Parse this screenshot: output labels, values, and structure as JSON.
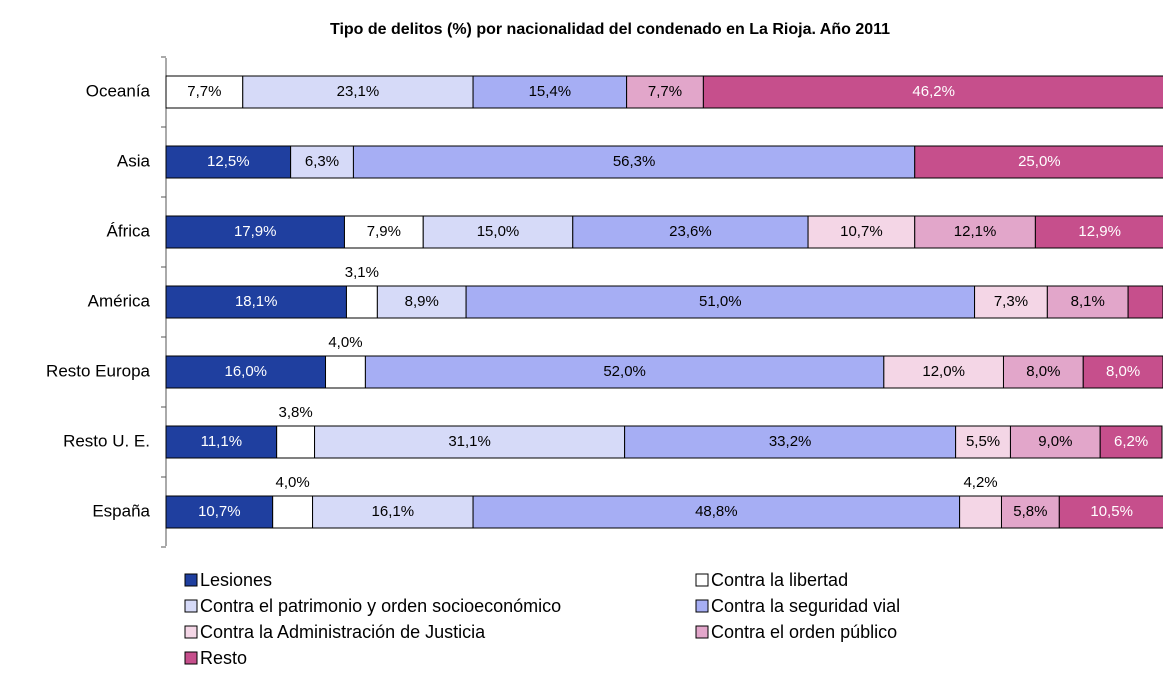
{
  "chart_data": {
    "type": "stacked_bar_horizontal",
    "title": "Tipo de delitos (%) por nacionalidad del condenado en La Rioja. Año 2011",
    "categories": [
      "Oceanía",
      "Asia",
      "África",
      "América",
      "Resto Europa",
      "Resto U. E.",
      "España"
    ],
    "xlim": [
      0,
      100
    ],
    "series": [
      {
        "name": "Lesiones",
        "color": "#1f3f9f",
        "values": [
          0,
          12.5,
          17.9,
          18.1,
          16.0,
          11.1,
          10.7
        ],
        "value_labels": [
          null,
          "12,5%",
          "17,9%",
          "18,1%",
          "16,0%",
          "11,1%",
          "10,7%"
        ]
      },
      {
        "name": "Contra la libertad",
        "color": "#ffffff",
        "values": [
          7.7,
          0,
          7.9,
          3.1,
          4.0,
          3.8,
          4.0
        ],
        "value_labels": [
          "7,7%",
          null,
          "7,9%",
          "3,1%",
          "4,0%",
          "3,8%",
          "4,0%"
        ]
      },
      {
        "name": "Contra el patrimonio y orden socioeconómico",
        "color": "#d6daf8",
        "values": [
          23.1,
          6.3,
          15.0,
          8.9,
          0,
          31.1,
          16.1
        ],
        "value_labels": [
          "23,1%",
          "6,3%",
          "15,0%",
          "8,9%",
          null,
          "31,1%",
          "16,1%"
        ]
      },
      {
        "name": "Contra la seguridad vial",
        "color": "#a6aef4",
        "values": [
          15.4,
          56.3,
          23.6,
          51.0,
          52.0,
          33.2,
          48.8
        ],
        "value_labels": [
          "15,4%",
          "56,3%",
          "23,6%",
          "51,0%",
          "52,0%",
          "33,2%",
          "48,8%"
        ]
      },
      {
        "name": "Contra la Administración de Justicia",
        "color": "#f4d6e6",
        "values": [
          0,
          0,
          10.7,
          7.3,
          12.0,
          5.5,
          4.2
        ],
        "value_labels": [
          null,
          null,
          "10,7%",
          "7,3%",
          "12,0%",
          "5,5%",
          "4,2%"
        ]
      },
      {
        "name": "Contra el orden público",
        "color": "#e2a6ca",
        "values": [
          7.7,
          0,
          12.1,
          8.1,
          8.0,
          9.0,
          5.8
        ],
        "value_labels": [
          "7,7%",
          null,
          "12,1%",
          "8,1%",
          "8,0%",
          "9,0%",
          "5,8%"
        ]
      },
      {
        "name": "Resto",
        "color": "#c64f8c",
        "values": [
          46.2,
          25.0,
          12.9,
          3.5,
          8.0,
          6.2,
          10.5
        ],
        "value_labels": [
          "46,2%",
          "25,0%",
          "12,9%",
          null,
          "8,0%",
          "6,2%",
          "10,5%"
        ]
      }
    ]
  }
}
